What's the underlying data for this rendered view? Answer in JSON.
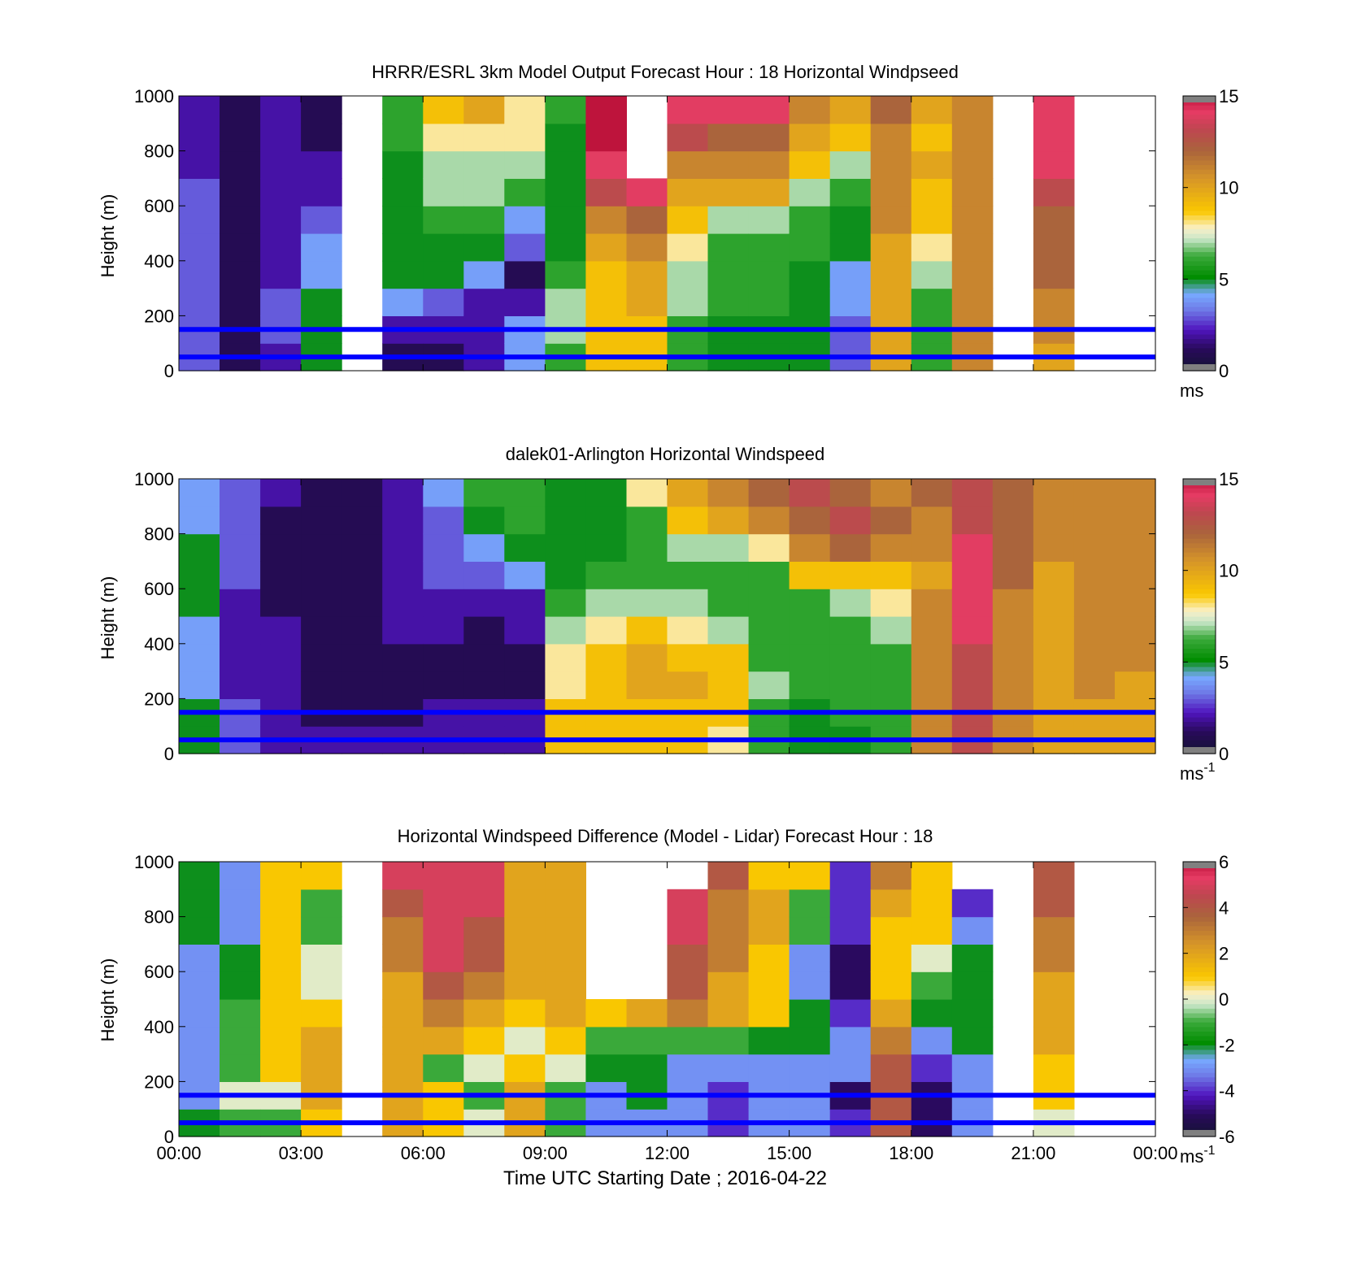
{
  "figure": {
    "xlabel": "Time UTC  Starting Date ; 2016-04-22",
    "time_ticks": [
      "00:00",
      "03:00",
      "06:00",
      "09:00",
      "12:00",
      "15:00",
      "18:00",
      "21:00",
      "00:00"
    ],
    "height_ticks": [
      "0",
      "200",
      "400",
      "600",
      "800",
      "1000"
    ],
    "ylabel": "Height (m)",
    "reference_line_color": "#0000ff",
    "reference_heights_m": [
      150,
      50
    ]
  },
  "chart_data": [
    {
      "type": "heatmap",
      "title": "HRRR/ESRL 3km Model Output   Forecast Hour : 18 Horizontal Windpseed",
      "ylabel": "Height (m)",
      "xlim_hours": [
        0,
        24
      ],
      "ylim": [
        0,
        1000
      ],
      "grid": false,
      "colorbar": {
        "range": [
          0,
          15
        ],
        "ticks": [
          "0",
          "5",
          "10",
          "15"
        ],
        "unit_base": "ms",
        "unit_sup": ""
      },
      "reference_lines_m": [
        150,
        50
      ],
      "data_note": "hourly columns, values in m/s; null = missing",
      "columns": [
        {
          "hour": 0,
          "values": [
            3,
            3,
            3,
            3,
            3,
            3,
            3,
            2,
            2,
            2
          ]
        },
        {
          "hour": 1,
          "values": [
            1,
            1,
            1,
            1,
            1,
            1,
            1,
            1,
            1,
            1
          ]
        },
        {
          "hour": 2,
          "values": [
            2,
            3,
            3,
            2,
            2,
            2,
            2,
            2,
            2,
            2
          ]
        },
        {
          "hour": 3,
          "values": [
            5,
            5,
            5,
            4,
            4,
            3,
            2,
            2,
            1,
            1
          ]
        },
        {
          "hour": 4,
          "values": [
            null,
            null,
            null,
            null,
            null,
            null,
            null,
            null,
            null,
            null
          ]
        },
        {
          "hour": 5,
          "values": [
            1,
            2,
            4,
            5,
            5,
            5,
            5,
            5,
            6,
            6
          ]
        },
        {
          "hour": 6,
          "values": [
            1,
            2,
            3,
            5,
            5,
            6,
            7,
            7,
            8,
            9
          ]
        },
        {
          "hour": 7,
          "values": [
            2,
            2,
            2,
            4,
            5,
            6,
            7,
            7,
            8,
            10
          ]
        },
        {
          "hour": 8,
          "values": [
            4,
            4,
            2,
            1,
            3,
            4,
            6,
            7,
            8,
            8
          ]
        },
        {
          "hour": 9,
          "values": [
            6,
            7,
            7,
            6,
            5,
            5,
            5,
            5,
            5,
            6
          ]
        },
        {
          "hour": 10,
          "values": [
            9,
            9,
            9,
            9,
            10,
            11,
            13,
            14,
            15,
            15
          ]
        },
        {
          "hour": 11,
          "values": [
            9,
            9,
            10,
            10,
            11,
            12,
            14,
            null,
            null,
            null
          ]
        },
        {
          "hour": 12,
          "values": [
            6,
            6,
            7,
            7,
            8,
            9,
            10,
            11,
            13,
            14
          ]
        },
        {
          "hour": 13,
          "values": [
            5,
            5,
            6,
            6,
            6,
            7,
            10,
            11,
            12,
            14
          ]
        },
        {
          "hour": 14,
          "values": [
            5,
            5,
            6,
            6,
            6,
            7,
            10,
            11,
            12,
            14
          ]
        },
        {
          "hour": 15,
          "values": [
            5,
            5,
            5,
            5,
            6,
            6,
            7,
            9,
            10,
            11
          ]
        },
        {
          "hour": 16,
          "values": [
            3,
            3,
            4,
            4,
            5,
            5,
            6,
            7,
            9,
            10
          ]
        },
        {
          "hour": 17,
          "values": [
            10,
            10,
            10,
            10,
            10,
            11,
            11,
            11,
            11,
            12
          ]
        },
        {
          "hour": 18,
          "values": [
            6,
            6,
            6,
            7,
            8,
            9,
            9,
            10,
            9,
            10
          ]
        },
        {
          "hour": 19,
          "values": [
            11,
            11,
            11,
            11,
            11,
            11,
            11,
            11,
            11,
            11
          ]
        },
        {
          "hour": 20,
          "values": [
            null,
            null,
            null,
            null,
            null,
            null,
            null,
            null,
            null,
            null
          ]
        },
        {
          "hour": 21,
          "values": [
            10,
            11,
            11,
            12,
            12,
            12,
            13,
            14,
            14,
            14
          ]
        },
        {
          "hour": 22,
          "values": [
            null,
            null,
            null,
            null,
            null,
            null,
            null,
            null,
            null,
            null
          ]
        },
        {
          "hour": 23,
          "values": [
            null,
            null,
            null,
            null,
            null,
            null,
            null,
            null,
            null,
            null
          ]
        }
      ]
    },
    {
      "type": "heatmap",
      "title": "dalek01-Arlington  Horizontal Windspeed",
      "ylabel": "Height (m)",
      "xlim_hours": [
        0,
        24
      ],
      "ylim": [
        0,
        1000
      ],
      "grid": false,
      "colorbar": {
        "range": [
          0,
          15
        ],
        "ticks": [
          "0",
          "5",
          "10",
          "15"
        ],
        "unit_base": "ms",
        "unit_sup": "-1"
      },
      "reference_lines_m": [
        150,
        50
      ],
      "data_note": "approximate lidar speed field in m/s, sampled by hour",
      "columns": [
        {
          "hour": 0,
          "values": [
            5,
            5,
            4,
            4,
            4,
            5,
            5,
            5,
            4,
            4
          ]
        },
        {
          "hour": 1,
          "values": [
            3,
            3,
            2,
            2,
            2,
            2,
            3,
            3,
            3,
            3
          ]
        },
        {
          "hour": 2,
          "values": [
            2,
            2,
            2,
            2,
            2,
            1,
            1,
            1,
            1,
            2
          ]
        },
        {
          "hour": 3,
          "values": [
            2,
            1,
            1,
            1,
            1,
            1,
            1,
            1,
            1,
            1
          ]
        },
        {
          "hour": 4,
          "values": [
            2,
            1,
            1,
            1,
            1,
            1,
            1,
            1,
            1,
            1
          ]
        },
        {
          "hour": 5,
          "values": [
            2,
            1,
            1,
            1,
            2,
            2,
            2,
            2,
            2,
            2
          ]
        },
        {
          "hour": 6,
          "values": [
            2,
            2,
            1,
            1,
            2,
            2,
            3,
            3,
            3,
            4
          ]
        },
        {
          "hour": 7,
          "values": [
            2,
            2,
            1,
            1,
            1,
            2,
            3,
            4,
            5,
            6
          ]
        },
        {
          "hour": 8,
          "values": [
            2,
            2,
            1,
            1,
            2,
            2,
            4,
            5,
            6,
            6
          ]
        },
        {
          "hour": 9,
          "values": [
            9,
            9,
            8,
            8,
            7,
            6,
            5,
            5,
            5,
            5
          ]
        },
        {
          "hour": 10,
          "values": [
            9,
            9,
            9,
            9,
            8,
            7,
            6,
            5,
            5,
            5
          ]
        },
        {
          "hour": 11,
          "values": [
            9,
            9,
            10,
            10,
            9,
            7,
            6,
            6,
            6,
            8
          ]
        },
        {
          "hour": 12,
          "values": [
            9,
            9,
            10,
            9,
            8,
            7,
            6,
            7,
            9,
            10
          ]
        },
        {
          "hour": 13,
          "values": [
            8,
            9,
            9,
            9,
            7,
            6,
            6,
            7,
            10,
            11
          ]
        },
        {
          "hour": 14,
          "values": [
            6,
            6,
            7,
            6,
            6,
            6,
            6,
            8,
            11,
            12
          ]
        },
        {
          "hour": 15,
          "values": [
            5,
            5,
            6,
            6,
            6,
            6,
            9,
            11,
            12,
            13
          ]
        },
        {
          "hour": 16,
          "values": [
            5,
            6,
            6,
            6,
            6,
            7,
            9,
            12,
            13,
            12
          ]
        },
        {
          "hour": 17,
          "values": [
            6,
            6,
            6,
            6,
            7,
            8,
            9,
            11,
            12,
            11
          ]
        },
        {
          "hour": 18,
          "values": [
            11,
            11,
            11,
            11,
            11,
            11,
            10,
            11,
            11,
            12
          ]
        },
        {
          "hour": 19,
          "values": [
            13,
            13,
            13,
            13,
            14,
            14,
            14,
            14,
            13,
            13
          ]
        },
        {
          "hour": 20,
          "values": [
            11,
            11,
            11,
            11,
            11,
            11,
            12,
            12,
            12,
            12
          ]
        },
        {
          "hour": 21,
          "values": [
            10,
            10,
            10,
            10,
            10,
            10,
            10,
            11,
            11,
            11
          ]
        },
        {
          "hour": 22,
          "values": [
            10,
            10,
            11,
            11,
            11,
            11,
            11,
            11,
            11,
            11
          ]
        },
        {
          "hour": 23,
          "values": [
            10,
            10,
            10,
            11,
            11,
            11,
            11,
            11,
            11,
            11
          ]
        }
      ]
    },
    {
      "type": "heatmap",
      "title": "Horizontal Windspeed Difference (Model - Lidar) Forecast Hour : 18",
      "ylabel": "Height (m)",
      "xlabel": "Time UTC  Starting Date ; 2016-04-22",
      "xlim_hours": [
        0,
        24
      ],
      "ylim": [
        0,
        1000
      ],
      "grid": false,
      "colorbar": {
        "range": [
          -6,
          6
        ],
        "ticks": [
          "-6",
          "-4",
          "-2",
          "0",
          "2",
          "4",
          "6"
        ],
        "unit_base": "ms",
        "unit_sup": "-1"
      },
      "reference_lines_m": [
        150,
        50
      ],
      "data_note": "model minus lidar in m/s; null = missing",
      "columns": [
        {
          "hour": 0,
          "values": [
            -2,
            -3,
            -3,
            -3,
            -3,
            -3,
            -3,
            -2,
            -2,
            -2
          ]
        },
        {
          "hour": 1,
          "values": [
            -1,
            0,
            -1,
            -1,
            -1,
            -2,
            -2,
            -3,
            -3,
            -3
          ]
        },
        {
          "hour": 2,
          "values": [
            -1,
            0,
            1,
            1,
            1,
            1,
            1,
            1,
            1,
            1
          ]
        },
        {
          "hour": 3,
          "values": [
            1,
            2,
            2,
            2,
            1,
            0,
            0,
            -1,
            -1,
            1
          ]
        },
        {
          "hour": 4,
          "values": [
            null,
            null,
            null,
            null,
            null,
            null,
            null,
            null,
            null,
            null
          ]
        },
        {
          "hour": 5,
          "values": [
            2,
            2,
            2,
            2,
            2,
            2,
            3,
            3,
            4,
            5
          ]
        },
        {
          "hour": 6,
          "values": [
            1,
            1,
            -1,
            2,
            3,
            4,
            5,
            5,
            5,
            5
          ]
        },
        {
          "hour": 7,
          "values": [
            0,
            -1,
            0,
            1,
            2,
            3,
            4,
            4,
            5,
            5
          ]
        },
        {
          "hour": 8,
          "values": [
            2,
            2,
            1,
            0,
            1,
            2,
            2,
            2,
            2,
            2
          ]
        },
        {
          "hour": 9,
          "values": [
            -1,
            -1,
            0,
            1,
            2,
            2,
            2,
            2,
            2,
            2
          ]
        },
        {
          "hour": 10,
          "values": [
            -3,
            -3,
            -2,
            -1,
            1,
            null,
            null,
            null,
            null,
            null
          ]
        },
        {
          "hour": 11,
          "values": [
            -3,
            -2,
            -2,
            -1,
            2,
            null,
            null,
            null,
            null,
            null
          ]
        },
        {
          "hour": 12,
          "values": [
            -3,
            -3,
            -3,
            -1,
            3,
            4,
            4,
            5,
            5,
            null
          ]
        },
        {
          "hour": 13,
          "values": [
            -4,
            -4,
            -3,
            -1,
            2,
            2,
            3,
            3,
            3,
            4
          ]
        },
        {
          "hour": 14,
          "values": [
            -3,
            -3,
            -3,
            -2,
            1,
            1,
            1,
            2,
            2,
            1
          ]
        },
        {
          "hour": 15,
          "values": [
            -3,
            -3,
            -3,
            -2,
            -2,
            -3,
            -3,
            -1,
            -1,
            1
          ]
        },
        {
          "hour": 16,
          "values": [
            -4,
            -5,
            -3,
            -3,
            -4,
            -5,
            -5,
            -4,
            -4,
            -4
          ]
        },
        {
          "hour": 17,
          "values": [
            4,
            4,
            4,
            3,
            2,
            1,
            1,
            1,
            2,
            3
          ]
        },
        {
          "hour": 18,
          "values": [
            -5,
            -5,
            -4,
            -3,
            -2,
            -1,
            0,
            1,
            1,
            1
          ]
        },
        {
          "hour": 19,
          "values": [
            -3,
            -3,
            -3,
            -2,
            -2,
            -2,
            -2,
            -3,
            -4,
            null
          ]
        },
        {
          "hour": 20,
          "values": [
            null,
            null,
            null,
            null,
            null,
            null,
            null,
            null,
            null,
            null
          ]
        },
        {
          "hour": 21,
          "values": [
            0,
            1,
            1,
            2,
            2,
            2,
            3,
            3,
            4,
            4
          ]
        },
        {
          "hour": 22,
          "values": [
            null,
            null,
            null,
            null,
            null,
            null,
            null,
            null,
            null,
            null
          ]
        },
        {
          "hour": 23,
          "values": [
            null,
            null,
            null,
            null,
            null,
            null,
            null,
            null,
            null,
            null
          ]
        }
      ]
    }
  ]
}
